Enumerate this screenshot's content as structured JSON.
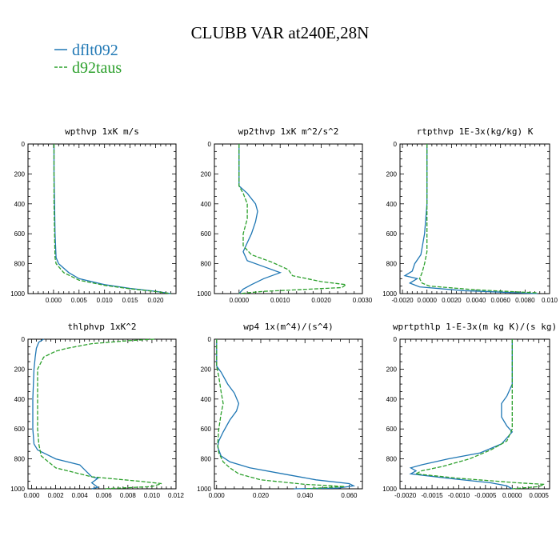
{
  "title": "CLUBB VAR at240E,28N",
  "legend": [
    {
      "label": "dflt092",
      "color": "#1f77b4",
      "dash": "solid"
    },
    {
      "label": "d92taus",
      "color": "#2ca02c",
      "dash": "dashed"
    }
  ],
  "chart_data": [
    {
      "type": "line",
      "title": "wpthvp  1xK m/s",
      "ylim": [
        1000,
        0
      ],
      "yticks": [
        0,
        200,
        400,
        600,
        800,
        1000
      ],
      "ytick_labels": [
        "0",
        "200",
        "400",
        "600",
        "800",
        "1000"
      ],
      "xlim": [
        -0.005,
        0.024
      ],
      "xticks": [
        0.0,
        0.005,
        0.01,
        0.015,
        0.02
      ],
      "xtick_labels": [
        "0.000",
        "0.005",
        "0.010",
        "0.015",
        "0.020"
      ],
      "series": [
        {
          "name": "dflt092",
          "points": [
            [
              0.0001,
              0
            ],
            [
              0.0001,
              200
            ],
            [
              0.0002,
              400
            ],
            [
              0.0003,
              600
            ],
            [
              0.0005,
              760
            ],
            [
              0.001,
              800
            ],
            [
              0.003,
              860
            ],
            [
              0.005,
              900
            ],
            [
              0.01,
              940
            ],
            [
              0.015,
              965
            ],
            [
              0.02,
              985
            ],
            [
              0.023,
              1000
            ]
          ]
        },
        {
          "name": "d92taus",
          "points": [
            [
              0.0001,
              0
            ],
            [
              0.0001,
              200
            ],
            [
              0.0001,
              400
            ],
            [
              0.0002,
              600
            ],
            [
              0.0003,
              760
            ],
            [
              0.0005,
              800
            ],
            [
              0.002,
              860
            ],
            [
              0.005,
              910
            ],
            [
              0.01,
              945
            ],
            [
              0.015,
              968
            ],
            [
              0.02,
              986
            ],
            [
              0.023,
              1000
            ]
          ]
        }
      ]
    },
    {
      "type": "line",
      "title": "wp2thvp  1xK m^2/s^2",
      "ylim": [
        1000,
        0
      ],
      "yticks": [
        0,
        200,
        400,
        600,
        800,
        1000
      ],
      "ytick_labels": [
        "0",
        "200",
        "400",
        "600",
        "800",
        "1000"
      ],
      "xlim": [
        -0.0006,
        0.003
      ],
      "xticks": [
        0.0,
        0.001,
        0.002,
        0.003
      ],
      "xtick_labels": [
        "0.0000",
        "0.0010",
        "0.0020",
        "0.0030"
      ],
      "series": [
        {
          "name": "dflt092",
          "points": [
            [
              0,
              0
            ],
            [
              0,
              150
            ],
            [
              0,
              280
            ],
            [
              0.0002,
              330
            ],
            [
              0.0004,
              400
            ],
            [
              0.00045,
              450
            ],
            [
              0.0004,
              520
            ],
            [
              0.0003,
              600
            ],
            [
              0.0002,
              660
            ],
            [
              0.0001,
              720
            ],
            [
              0.0002,
              780
            ],
            [
              0.0006,
              820
            ],
            [
              0.001,
              860
            ],
            [
              0.0006,
              900
            ],
            [
              0.0003,
              940
            ],
            [
              0.0001,
              970
            ],
            [
              0,
              1000
            ]
          ]
        },
        {
          "name": "d92taus",
          "points": [
            [
              0,
              0
            ],
            [
              0,
              150
            ],
            [
              0,
              280
            ],
            [
              0.0001,
              330
            ],
            [
              0.0002,
              400
            ],
            [
              0.0002,
              500
            ],
            [
              0.0001,
              600
            ],
            [
              0.0001,
              680
            ],
            [
              0.0003,
              740
            ],
            [
              0.0008,
              790
            ],
            [
              0.0012,
              840
            ],
            [
              0.0013,
              880
            ],
            [
              0.002,
              920
            ],
            [
              0.0026,
              940
            ],
            [
              0.0025,
              960
            ],
            [
              0.0006,
              985
            ],
            [
              0,
              1000
            ]
          ]
        }
      ]
    },
    {
      "type": "line",
      "title": "rtpthvp  1E-3x(kg/kg) K",
      "ylim": [
        1000,
        0
      ],
      "yticks": [
        0,
        200,
        400,
        600,
        800,
        1000
      ],
      "ytick_labels": [
        "0",
        "200",
        "400",
        "600",
        "800",
        "1000"
      ],
      "xlim": [
        -0.0022,
        0.01
      ],
      "xticks": [
        -0.002,
        0.0,
        0.002,
        0.004,
        0.006,
        0.008,
        0.01
      ],
      "xtick_labels": [
        "-0.0020",
        "0.0000",
        "0.0020",
        "0.0040",
        "0.0060",
        "0.0080",
        "0.010"
      ],
      "series": [
        {
          "name": "dflt092",
          "points": [
            [
              0,
              0
            ],
            [
              0,
              400
            ],
            [
              -0.0002,
              600
            ],
            [
              -0.0005,
              740
            ],
            [
              -0.001,
              800
            ],
            [
              -0.0012,
              850
            ],
            [
              -0.0018,
              880
            ],
            [
              -0.0008,
              900
            ],
            [
              -0.0014,
              930
            ],
            [
              -0.0006,
              955
            ],
            [
              0.003,
              980
            ],
            [
              0.009,
              1000
            ]
          ]
        },
        {
          "name": "d92taus",
          "points": [
            [
              0,
              0
            ],
            [
              0,
              400
            ],
            [
              0,
              600
            ],
            [
              0,
              720
            ],
            [
              -0.0002,
              800
            ],
            [
              -0.0004,
              860
            ],
            [
              -0.0006,
              900
            ],
            [
              -0.0004,
              930
            ],
            [
              0.0002,
              950
            ],
            [
              0.004,
              975
            ],
            [
              0.009,
              995
            ]
          ]
        }
      ]
    },
    {
      "type": "line",
      "title": "thlphvp  1xK^2",
      "ylim": [
        1000,
        0
      ],
      "yticks": [
        0,
        200,
        400,
        600,
        800,
        1000
      ],
      "ytick_labels": [
        "0",
        "200",
        "400",
        "600",
        "800",
        "1000"
      ],
      "xlim": [
        -0.0003,
        0.012
      ],
      "xticks": [
        0.0,
        0.002,
        0.004,
        0.006,
        0.008,
        0.01,
        0.012
      ],
      "xtick_labels": [
        "0.000",
        "0.002",
        "0.004",
        "0.006",
        "0.008",
        "0.010",
        "0.012"
      ],
      "series": [
        {
          "name": "dflt092",
          "points": [
            [
              0.001,
              0
            ],
            [
              0.0006,
              20
            ],
            [
              0.0004,
              60
            ],
            [
              0.0003,
              120
            ],
            [
              0.0002,
              200
            ],
            [
              0.0001,
              400
            ],
            [
              0.0001,
              600
            ],
            [
              0.0002,
              700
            ],
            [
              0.0005,
              740
            ],
            [
              0.002,
              800
            ],
            [
              0.004,
              840
            ],
            [
              0.0045,
              880
            ],
            [
              0.005,
              920
            ],
            [
              0.0055,
              930
            ],
            [
              0.005,
              960
            ],
            [
              0.0055,
              990
            ],
            [
              0.005,
              1000
            ]
          ]
        },
        {
          "name": "d92taus",
          "points": [
            [
              0.0102,
              0
            ],
            [
              0.008,
              10
            ],
            [
              0.005,
              30
            ],
            [
              0.003,
              60
            ],
            [
              0.002,
              80
            ],
            [
              0.001,
              120
            ],
            [
              0.0005,
              200
            ],
            [
              0.0005,
              400
            ],
            [
              0.0005,
              600
            ],
            [
              0.0006,
              700
            ],
            [
              0.0008,
              780
            ],
            [
              0.002,
              860
            ],
            [
              0.005,
              920
            ],
            [
              0.009,
              950
            ],
            [
              0.0108,
              965
            ],
            [
              0.01,
              985
            ],
            [
              0.006,
              1000
            ]
          ]
        }
      ]
    },
    {
      "type": "line",
      "title": "wp4  1x(m^4)/(s^4)",
      "ylim": [
        1000,
        0
      ],
      "yticks": [
        0,
        200,
        400,
        600,
        800,
        1000
      ],
      "ytick_labels": [
        "0",
        "200",
        "400",
        "600",
        "800",
        "1000"
      ],
      "xlim": [
        -0.001,
        0.066
      ],
      "xticks": [
        0.0,
        0.02,
        0.04,
        0.06
      ],
      "xtick_labels": [
        "0.000",
        "0.020",
        "0.040",
        "0.060"
      ],
      "series": [
        {
          "name": "dflt092",
          "points": [
            [
              0,
              0
            ],
            [
              0,
              180
            ],
            [
              0.002,
              220
            ],
            [
              0.005,
              300
            ],
            [
              0.008,
              360
            ],
            [
              0.01,
              430
            ],
            [
              0.009,
              480
            ],
            [
              0.006,
              540
            ],
            [
              0.003,
              620
            ],
            [
              0.001,
              680
            ],
            [
              0.0005,
              720
            ],
            [
              0.002,
              780
            ],
            [
              0.006,
              820
            ],
            [
              0.015,
              860
            ],
            [
              0.03,
              900
            ],
            [
              0.045,
              940
            ],
            [
              0.06,
              965
            ],
            [
              0.062,
              980
            ],
            [
              0.055,
              995
            ],
            [
              0.035,
              1000
            ]
          ]
        },
        {
          "name": "d92taus",
          "points": [
            [
              0,
              0
            ],
            [
              0,
              180
            ],
            [
              0.001,
              250
            ],
            [
              0.002,
              350
            ],
            [
              0.003,
              430
            ],
            [
              0.002,
              500
            ],
            [
              0.001,
              600
            ],
            [
              0.0005,
              700
            ],
            [
              0.001,
              760
            ],
            [
              0.003,
              820
            ],
            [
              0.006,
              860
            ],
            [
              0.01,
              900
            ],
            [
              0.02,
              940
            ],
            [
              0.04,
              970
            ],
            [
              0.058,
              985
            ],
            [
              0.04,
              1000
            ]
          ]
        }
      ]
    },
    {
      "type": "line",
      "title": "wprtpthlp  1-E-3x(m kg K)/(s kg)",
      "ylim": [
        1000,
        0
      ],
      "yticks": [
        0,
        200,
        400,
        600,
        800,
        1000
      ],
      "ytick_labels": [
        "0",
        "200",
        "400",
        "600",
        "800",
        "1000"
      ],
      "xlim": [
        -0.0021,
        0.0007
      ],
      "xticks": [
        -0.002,
        -0.0015,
        -0.001,
        -0.0005,
        0.0,
        0.0005
      ],
      "xtick_labels": [
        "-0.0020",
        "-0.0015",
        "-0.0010",
        "-0.0005",
        "0.0000",
        "0.0005"
      ],
      "series": [
        {
          "name": "dflt092",
          "points": [
            [
              0,
              0
            ],
            [
              0,
              200
            ],
            [
              0,
              300
            ],
            [
              -0.0001,
              380
            ],
            [
              -0.0002,
              430
            ],
            [
              -0.0002,
              520
            ],
            [
              -0.0001,
              580
            ],
            [
              0,
              620
            ],
            [
              -0.0002,
              700
            ],
            [
              -0.0006,
              760
            ],
            [
              -0.0012,
              800
            ],
            [
              -0.0017,
              840
            ],
            [
              -0.0019,
              860
            ],
            [
              -0.0018,
              880
            ],
            [
              -0.0019,
              900
            ],
            [
              -0.0012,
              930
            ],
            [
              -0.0004,
              960
            ],
            [
              -0.0001,
              980
            ],
            [
              0,
              1000
            ]
          ]
        },
        {
          "name": "d92taus",
          "points": [
            [
              0,
              0
            ],
            [
              0,
              200
            ],
            [
              0,
              300
            ],
            [
              0,
              400
            ],
            [
              0,
              500
            ],
            [
              0,
              600
            ],
            [
              -0.0001,
              680
            ],
            [
              -0.0004,
              740
            ],
            [
              -0.0008,
              800
            ],
            [
              -0.0013,
              850
            ],
            [
              -0.0017,
              880
            ],
            [
              -0.0018,
              900
            ],
            [
              -0.001,
              930
            ],
            [
              0.0001,
              960
            ],
            [
              0.0006,
              970
            ],
            [
              0.0005,
              985
            ],
            [
              0,
              1000
            ]
          ]
        }
      ]
    }
  ]
}
